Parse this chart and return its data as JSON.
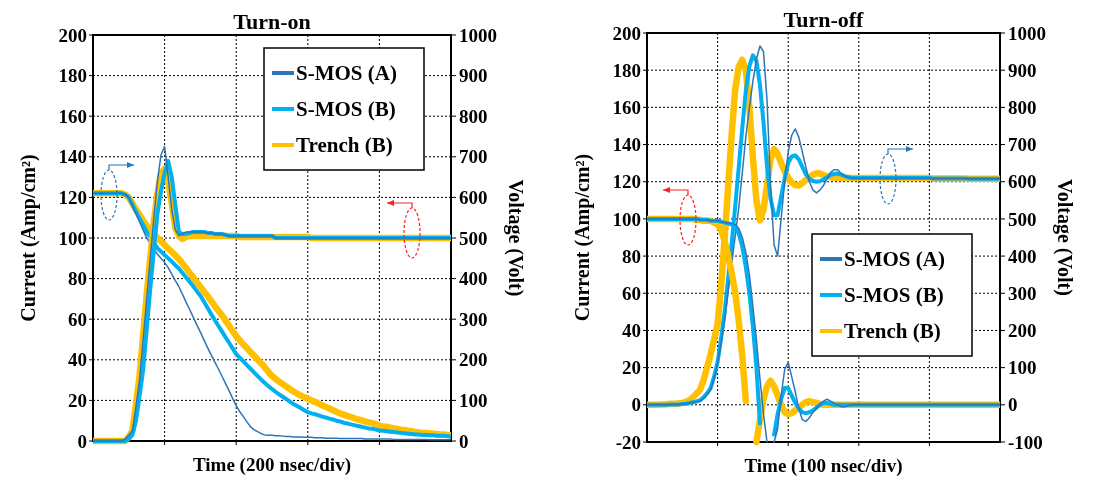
{
  "chart_data": [
    {
      "type": "line",
      "title": "Turn-on",
      "xlabel": "Time (200 nsec/div)",
      "ylabel": "Current (Amp/cm²)",
      "y2label": "Voltage (Volt)",
      "categories": [
        null,
        null,
        null,
        null,
        null,
        null,
        null,
        null,
        null,
        null,
        null,
        null,
        null,
        null,
        null,
        null,
        null,
        null,
        null,
        null,
        null,
        null,
        null,
        null,
        null,
        null,
        null,
        null,
        null,
        null,
        null,
        null,
        null,
        null,
        null,
        null,
        null,
        null,
        null,
        null,
        null,
        null,
        null,
        null,
        null,
        null,
        null,
        null,
        null,
        null,
        null,
        null,
        null,
        null,
        null,
        null,
        null,
        null,
        null,
        null,
        null,
        null,
        null,
        null,
        null,
        null,
        null,
        null,
        null,
        null,
        null,
        null,
        null,
        null,
        null,
        null,
        null,
        null,
        null,
        null,
        null,
        null,
        null,
        null,
        null,
        null,
        null,
        null,
        null,
        null,
        null,
        null,
        null,
        null,
        null,
        null,
        null,
        null,
        null,
        null,
        null
      ],
      "ylim": [
        0,
        200
      ],
      "yticks": [
        0,
        20,
        40,
        60,
        80,
        100,
        120,
        140,
        160,
        180,
        200
      ],
      "y2lim": [
        0,
        1000
      ],
      "y2ticks": [
        0,
        100,
        200,
        300,
        400,
        500,
        600,
        700,
        800,
        900,
        1000
      ],
      "grid": true,
      "legend": "top right",
      "series": [
        {
          "name": "S-MOS (A)",
          "color": "#2e75b6",
          "values": [
            0,
            0,
            0,
            0,
            0,
            0,
            0,
            0,
            0,
            1,
            3,
            5,
            17,
            30,
            50,
            70,
            90,
            110,
            128,
            141,
            145,
            130,
            114,
            104,
            101,
            102,
            103,
            103,
            103,
            103,
            103,
            103,
            102.5,
            102.5,
            102,
            102,
            102,
            101.5,
            101,
            101,
            101,
            101,
            101,
            101,
            101,
            101,
            101,
            101,
            101,
            101,
            101,
            100,
            100,
            100,
            100,
            100,
            100,
            100,
            100,
            100,
            100,
            100,
            100,
            100,
            100,
            100,
            100,
            100,
            100,
            100,
            100,
            100,
            100,
            100,
            100,
            100,
            100,
            100,
            100,
            100,
            100,
            100,
            100,
            100,
            100,
            100,
            100,
            100,
            100,
            100,
            100,
            100,
            100,
            100,
            100,
            100,
            100,
            100,
            100,
            100,
            100
          ]
        },
        {
          "name": "S-MOS (B)",
          "color": "#00b0f0",
          "values": [
            0,
            0,
            0,
            0,
            0,
            0,
            0,
            0,
            0,
            0,
            1,
            3,
            10,
            22,
            35,
            55,
            75,
            94,
            112,
            123,
            132,
            138,
            130,
            116,
            103,
            102,
            102,
            102.5,
            103,
            103,
            103,
            103,
            102.5,
            102.5,
            102,
            102,
            102,
            101.5,
            101,
            101,
            101,
            101,
            101,
            101,
            101,
            101,
            101,
            101,
            101,
            101,
            101,
            100,
            100,
            100,
            100,
            100,
            100,
            100,
            100,
            100,
            100,
            100,
            100,
            100,
            100,
            100,
            100,
            100,
            100,
            100,
            100,
            100,
            100,
            100,
            100,
            100,
            100,
            100,
            100,
            100,
            100,
            100,
            100,
            100,
            100,
            100,
            100,
            100,
            100,
            100,
            100,
            100,
            100,
            100,
            100,
            100,
            100,
            100,
            100,
            100,
            100
          ]
        },
        {
          "name": "Trench (B)",
          "color": "#ffc000",
          "values": [
            0,
            0,
            0,
            0,
            0,
            0,
            0,
            0,
            0,
            0,
            2,
            5,
            18,
            32,
            52,
            72,
            90,
            108,
            122,
            132,
            134,
            128,
            117,
            105,
            101,
            99.5,
            100.5,
            101,
            101,
            101,
            101,
            101,
            101,
            101,
            101,
            101,
            101,
            101,
            101,
            101,
            101,
            100.5,
            100.5,
            100.5,
            100.5,
            100.5,
            100.5,
            100.5,
            100.5,
            100.5,
            100.5,
            100.5,
            100.5,
            100.5,
            100.5,
            100.5,
            100.5,
            100.5,
            100.5,
            100.5,
            100.5,
            100,
            100,
            100,
            100,
            100,
            100,
            100,
            100,
            100,
            100,
            100,
            100,
            100,
            100,
            100,
            100,
            100,
            100,
            100,
            100,
            100,
            100,
            100,
            100,
            100,
            100,
            100,
            100,
            100,
            100,
            100,
            100,
            100,
            100,
            100,
            100,
            100,
            100,
            100,
            100
          ]
        },
        {
          "axis": "y2",
          "color": "#2e75b6",
          "values": [
            610,
            610,
            610,
            610,
            610,
            610,
            610,
            610,
            610,
            607,
            600,
            580,
            560,
            540,
            520,
            500,
            487,
            473,
            460,
            450,
            440,
            427,
            411,
            395,
            380,
            361,
            342,
            324,
            305,
            286,
            268,
            249,
            230,
            212,
            195,
            178,
            160,
            142,
            124,
            105,
            87,
            72,
            60,
            47,
            35,
            28,
            23,
            18,
            15,
            14,
            14,
            13,
            13,
            12,
            11,
            11,
            10,
            10,
            10,
            9,
            9,
            9,
            8,
            8,
            8,
            7,
            7,
            7,
            7,
            6,
            6,
            6,
            6,
            6,
            6,
            6,
            5,
            5,
            5,
            5,
            5,
            5,
            5,
            5,
            4,
            4,
            4,
            4,
            4,
            4,
            4,
            4,
            4,
            4,
            3,
            3,
            3,
            3,
            3,
            3,
            3
          ]
        },
        {
          "axis": "y2",
          "color": "#00b0f0",
          "values": [
            610,
            610,
            610,
            610,
            610,
            610,
            610,
            610,
            610,
            607,
            600,
            583,
            565,
            548,
            532,
            515,
            502,
            488,
            475,
            467,
            458,
            450,
            442,
            433,
            425,
            414,
            403,
            392,
            381,
            369,
            358,
            343,
            328,
            313,
            298,
            284,
            270,
            256,
            242,
            228,
            214,
            205,
            196,
            187,
            178,
            169,
            160,
            151,
            143,
            135,
            128,
            121,
            115,
            109,
            103,
            97,
            91,
            86,
            81,
            76,
            71,
            68,
            66,
            63,
            60,
            58,
            55,
            53,
            50,
            48,
            45,
            43,
            41,
            39,
            37,
            35,
            33,
            31,
            30,
            28,
            26,
            25,
            24,
            23,
            22,
            21,
            20,
            19,
            18,
            17,
            16,
            16,
            15,
            15,
            14,
            14,
            13,
            13,
            13,
            12,
            12
          ]
        },
        {
          "axis": "y2",
          "color": "#ffc000",
          "values": [
            610,
            610,
            610,
            610,
            610,
            610,
            610,
            610,
            610,
            607,
            600,
            585,
            570,
            557,
            543,
            530,
            520,
            510,
            500,
            492,
            483,
            474,
            466,
            457,
            448,
            437,
            426,
            414,
            403,
            391,
            380,
            368,
            357,
            345,
            333,
            321,
            310,
            297,
            284,
            271,
            258,
            248,
            238,
            229,
            219,
            210,
            200,
            191,
            181,
            170,
            160,
            153,
            146,
            140,
            134,
            128,
            122,
            117,
            112,
            108,
            104,
            100,
            96,
            92,
            88,
            84,
            80,
            76,
            72,
            68,
            65,
            62,
            59,
            56,
            53,
            51,
            48,
            46,
            44,
            41,
            38,
            36,
            35,
            33,
            31,
            30,
            28,
            27,
            25,
            24,
            22,
            21,
            20,
            20,
            19,
            18,
            17,
            16,
            16,
            15,
            14
          ]
        }
      ]
    },
    {
      "type": "line",
      "title": "Turn-off",
      "xlabel": "Time (100 nsec/div)",
      "ylabel": "Current (Amp/cm²)",
      "y2label": "Voltage (Volt)",
      "categories": [
        null,
        null,
        null,
        null,
        null,
        null,
        null,
        null,
        null,
        null,
        null,
        null,
        null,
        null,
        null,
        null,
        null,
        null,
        null,
        null,
        null,
        null,
        null,
        null,
        null,
        null,
        null,
        null,
        null,
        null,
        null,
        null,
        null,
        null,
        null,
        null,
        null,
        null,
        null,
        null,
        null,
        null,
        null,
        null,
        null,
        null,
        null,
        null,
        null,
        null,
        null,
        null,
        null,
        null,
        null,
        null,
        null,
        null,
        null,
        null,
        null,
        null,
        null,
        null,
        null,
        null,
        null,
        null,
        null,
        null,
        null,
        null,
        null,
        null,
        null,
        null,
        null,
        null,
        null,
        null,
        null,
        null,
        null,
        null,
        null,
        null,
        null,
        null,
        null,
        null,
        null,
        null,
        null,
        null,
        null,
        null,
        null,
        null,
        null,
        null,
        null
      ],
      "ylim": [
        -20,
        200
      ],
      "yticks": [
        -20,
        0,
        20,
        40,
        60,
        80,
        100,
        120,
        140,
        160,
        180,
        200
      ],
      "y2lim": [
        -100,
        1000
      ],
      "y2ticks": [
        -100,
        0,
        100,
        200,
        300,
        400,
        500,
        600,
        700,
        800,
        900,
        1000
      ],
      "grid": true,
      "legend": "bottom right",
      "series": [
        {
          "name": "S-MOS (A)",
          "color": "#2e75b6",
          "values": [
            100,
            100,
            100,
            100,
            100,
            100,
            100,
            100,
            100,
            100,
            100,
            100,
            100,
            100,
            100,
            99.5,
            99.5,
            99.5,
            99,
            99,
            99,
            98.5,
            98,
            98,
            97.5,
            97,
            95,
            90,
            82,
            70,
            53,
            35,
            14,
            -5,
            -20,
            null,
            -20,
            -13,
            5,
            19,
            23,
            15,
            7,
            -2,
            -8,
            -9,
            -7,
            -4,
            -2,
            0,
            2,
            3,
            2,
            1,
            0,
            -1,
            -1,
            -0.5,
            0,
            0,
            0,
            0,
            0,
            0,
            0,
            0,
            0,
            0,
            0,
            0,
            0,
            0,
            0,
            0,
            0,
            0,
            0,
            0,
            0,
            0,
            0,
            0,
            0,
            0,
            0,
            0,
            0,
            0,
            0,
            0,
            0,
            0,
            0,
            0,
            0,
            0,
            0,
            0,
            0,
            0,
            0
          ]
        },
        {
          "name": "S-MOS (B)",
          "color": "#00b0f0",
          "values": [
            100,
            100,
            100,
            100,
            100,
            100,
            100,
            100,
            100,
            100,
            100,
            100,
            100,
            100,
            100,
            99.5,
            99.5,
            99.5,
            99,
            99,
            99,
            98.5,
            98,
            97.5,
            97,
            96,
            92,
            85,
            74,
            60,
            42,
            20,
            -10,
            null,
            null,
            null,
            -16,
            -5,
            3,
            9,
            9,
            5,
            1,
            -2,
            -4,
            -4.5,
            -4,
            -3,
            -1.5,
            0,
            1,
            1,
            0.5,
            0,
            0,
            0,
            0,
            0,
            0,
            0,
            0,
            0,
            0,
            0,
            0,
            0,
            0,
            0,
            0,
            0,
            0,
            0,
            0,
            0,
            0,
            0,
            0,
            0,
            0,
            0,
            0,
            0,
            0,
            0,
            0,
            0,
            0,
            0,
            0,
            0,
            0,
            0,
            0,
            0,
            0,
            0,
            0,
            0,
            0,
            0,
            0
          ]
        },
        {
          "name": "Trench (B)",
          "color": "#ffc000",
          "values": [
            100,
            100,
            100,
            100,
            100,
            100,
            100,
            100,
            100,
            100,
            100,
            100,
            100,
            100,
            99.5,
            99.5,
            99,
            99,
            99,
            98,
            97,
            94,
            88,
            80,
            71,
            60,
            45,
            26,
            2,
            null,
            null,
            -20,
            -8,
            3,
            10,
            13,
            10,
            5,
            0,
            -4,
            -5,
            -4.5,
            -3,
            -1.5,
            0,
            1.5,
            2,
            1.5,
            1,
            0.5,
            0,
            0,
            0,
            0,
            0,
            0,
            0,
            0,
            0,
            0,
            0,
            0,
            0,
            0,
            0,
            0,
            0,
            0,
            0,
            0,
            0,
            0,
            0,
            0,
            0,
            0,
            0,
            0,
            0,
            0,
            0,
            0,
            0,
            0,
            0,
            0,
            0,
            0,
            0,
            0,
            0,
            0,
            0,
            0,
            0,
            0,
            0,
            0,
            0,
            0,
            0
          ]
        },
        {
          "axis": "y2",
          "color": "#2e75b6",
          "values": [
            0,
            0,
            0,
            0,
            0,
            0,
            0,
            1,
            1,
            1,
            2,
            3,
            5,
            6,
            8,
            10,
            17,
            27,
            40,
            70,
            111,
            168,
            230,
            305,
            380,
            455,
            530,
            625,
            720,
            800,
            870,
            930,
            965,
            950,
            820,
            590,
            430,
            400,
            500,
            600,
            680,
            725,
            742,
            720,
            680,
            640,
            600,
            578,
            570,
            578,
            590,
            608,
            625,
            632,
            632,
            622,
            615,
            612,
            611,
            610,
            610,
            610,
            610,
            610,
            610,
            610,
            610,
            610,
            610,
            610,
            610,
            610,
            610,
            610,
            610,
            610,
            610,
            610,
            610,
            610,
            610,
            609,
            609,
            609,
            609,
            609,
            609,
            609,
            609,
            609,
            609,
            608,
            608,
            608,
            608,
            608,
            608,
            608,
            608,
            608,
            608
          ]
        },
        {
          "axis": "y2",
          "color": "#00b0f0",
          "values": [
            0,
            0,
            0,
            0,
            0,
            0,
            0,
            1,
            1,
            1,
            2,
            3,
            5,
            7,
            9,
            12,
            20,
            31,
            45,
            75,
            115,
            180,
            250,
            340,
            435,
            535,
            640,
            745,
            845,
            910,
            940,
            925,
            860,
            760,
            640,
            555,
            510,
            510,
            560,
            610,
            650,
            668,
            671,
            660,
            640,
            620,
            608,
            602,
            600,
            601,
            606,
            612,
            618,
            621,
            622,
            619,
            615,
            612,
            610,
            610,
            610,
            610,
            610,
            610,
            610,
            610,
            610,
            610,
            610,
            610,
            610,
            610,
            610,
            610,
            610,
            610,
            610,
            610,
            610,
            610,
            610,
            609,
            609,
            609,
            609,
            609,
            609,
            609,
            609,
            609,
            609,
            608,
            608,
            608,
            608,
            608,
            608,
            608,
            608,
            608,
            608
          ]
        },
        {
          "axis": "y2",
          "color": "#ffc000",
          "values": [
            0,
            0,
            0,
            0,
            1,
            1,
            2,
            3,
            3,
            4,
            5,
            8,
            12,
            20,
            30,
            40,
            65,
            100,
            135,
            175,
            218,
            320,
            450,
            590,
            730,
            850,
            910,
            928,
            900,
            800,
            665,
            550,
            496,
            525,
            590,
            660,
            688,
            675,
            650,
            628,
            610,
            598,
            591,
            590,
            596,
            605,
            612,
            619,
            623,
            622,
            618,
            615,
            612,
            611,
            610,
            610,
            610,
            610,
            610,
            610,
            610,
            610,
            610,
            610,
            610,
            610,
            610,
            610,
            610,
            610,
            610,
            610,
            610,
            610,
            610,
            610,
            610,
            610,
            610,
            610,
            610,
            609,
            609,
            609,
            609,
            609,
            609,
            609,
            609,
            609,
            609,
            608,
            608,
            608,
            608,
            608,
            608,
            608,
            608,
            608,
            608
          ]
        }
      ]
    }
  ]
}
